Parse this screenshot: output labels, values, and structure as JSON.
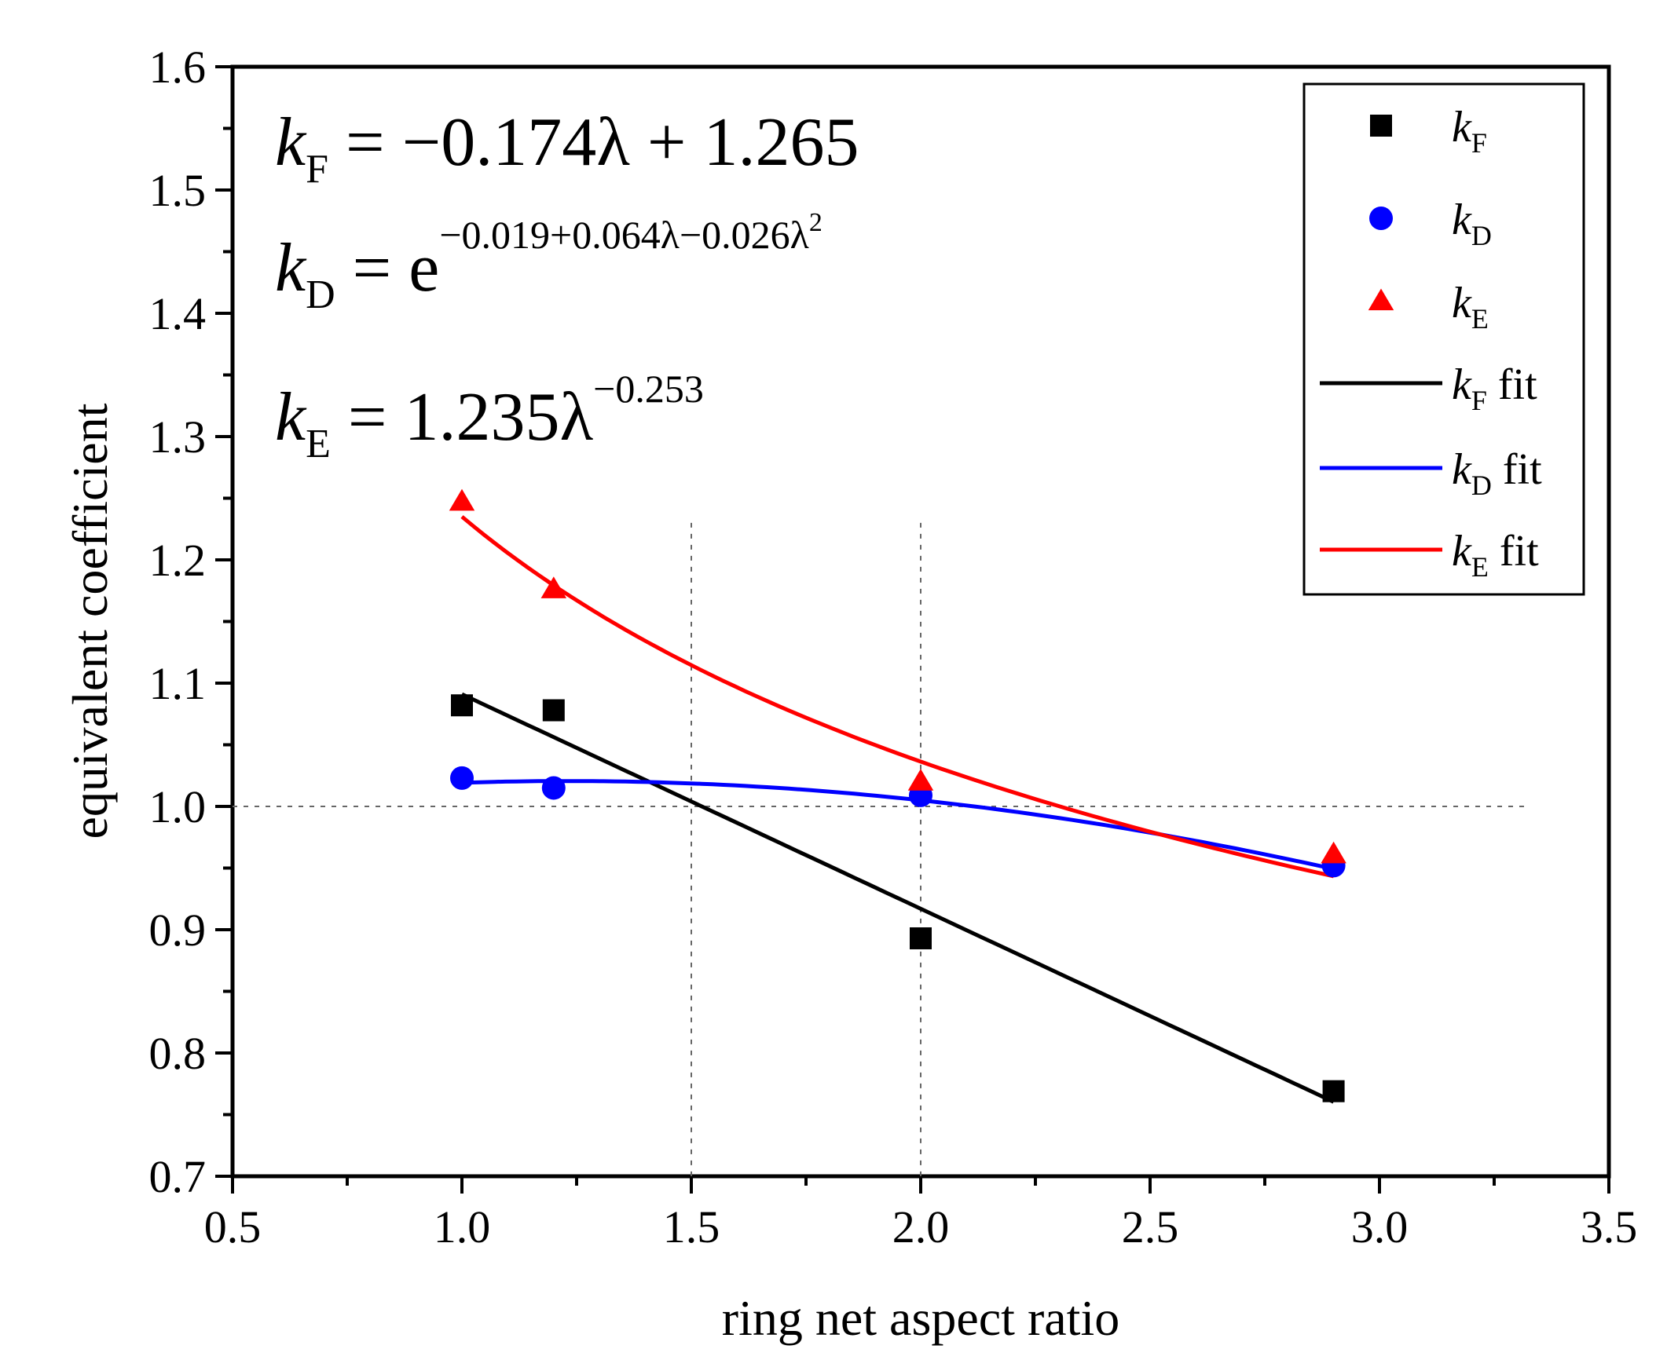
{
  "chart_data": {
    "type": "scatter",
    "title": "",
    "xlabel": "ring net aspect ratio",
    "ylabel": "equivalent coefficient",
    "xlim": [
      0.5,
      3.5
    ],
    "ylim": [
      0.7,
      1.6
    ],
    "x_ticks": [
      "0.5",
      "1.0",
      "1.5",
      "2.0",
      "2.5",
      "3.0",
      "3.5"
    ],
    "y_ticks": [
      "0.7",
      "0.8",
      "0.9",
      "1.0",
      "1.1",
      "1.2",
      "1.3",
      "1.4",
      "1.5",
      "1.6"
    ],
    "reference_lines": {
      "vertical": [
        1.5,
        2.0
      ],
      "horizontal": [
        1.0
      ]
    },
    "series": [
      {
        "name": "kF",
        "label_main": "k",
        "label_sub": "F",
        "marker": "square",
        "color": "#000000",
        "x": [
          1.0,
          1.2,
          2.0,
          2.9
        ],
        "y": [
          1.082,
          1.078,
          0.893,
          0.769
        ]
      },
      {
        "name": "kD",
        "label_main": "k",
        "label_sub": "D",
        "marker": "circle",
        "color": "#0000ff",
        "x": [
          1.0,
          1.2,
          2.0,
          2.9
        ],
        "y": [
          1.023,
          1.015,
          1.009,
          0.952
        ]
      },
      {
        "name": "kE",
        "label_main": "k",
        "label_sub": "E",
        "marker": "triangle",
        "color": "#ff0000",
        "x": [
          1.0,
          1.2,
          2.0,
          2.9
        ],
        "y": [
          1.247,
          1.176,
          1.02,
          0.961
        ]
      }
    ],
    "fits": [
      {
        "name": "kF fit",
        "label_main": "k",
        "label_sub": "F",
        "label_suffix": " fit",
        "color": "#000000",
        "model": "linear",
        "coefficients": [
          -0.174,
          1.265
        ],
        "x_range": [
          1.0,
          2.9
        ]
      },
      {
        "name": "kD fit",
        "label_main": "k",
        "label_sub": "D",
        "label_suffix": " fit",
        "color": "#0000ff",
        "model": "exp_quadratic",
        "coefficients": [
          -0.019,
          0.064,
          -0.026
        ],
        "x_range": [
          1.0,
          2.9
        ]
      },
      {
        "name": "kE fit",
        "label_main": "k",
        "label_sub": "E",
        "label_suffix": " fit",
        "color": "#ff0000",
        "model": "power",
        "coefficients": [
          1.235,
          -0.253
        ],
        "x_range": [
          1.0,
          2.9
        ]
      }
    ],
    "legend_position": "top-right",
    "annotations": {
      "eq_F": {
        "lhs": "k",
        "sub": "F",
        "rhs": "= −0.174λ + 1.265"
      },
      "eq_D": {
        "lhs": "k",
        "sub": "D",
        "rhs": "= e",
        "exponent": "−0.019+0.064λ−0.026λ",
        "exp_power": "2"
      },
      "eq_E": {
        "lhs": "k",
        "sub": "E",
        "rhs": "= 1.235λ",
        "exponent": "−0.253"
      }
    }
  }
}
